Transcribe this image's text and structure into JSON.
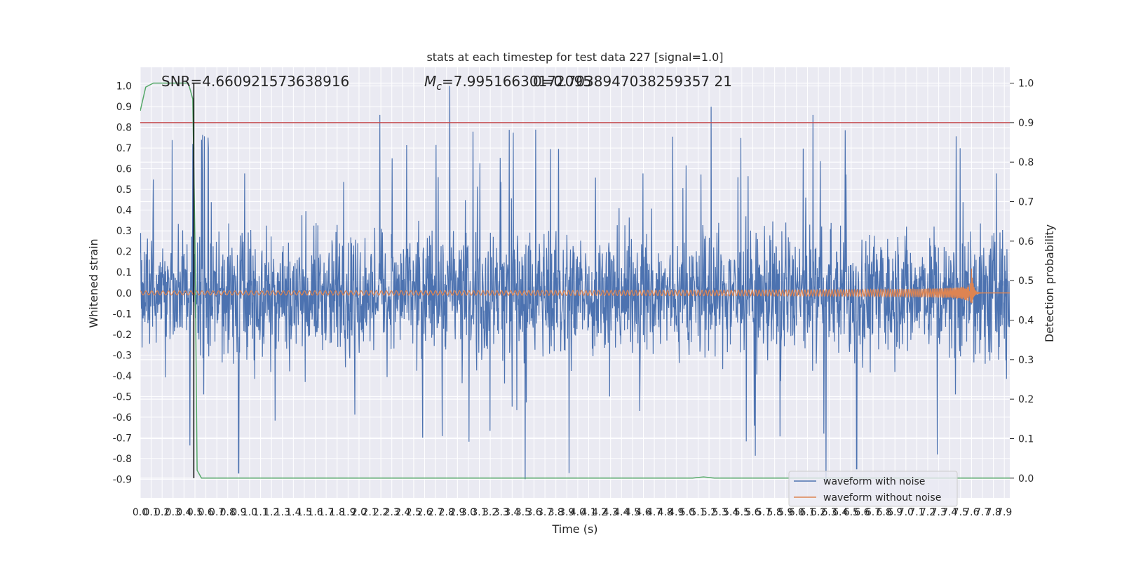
{
  "chart_data": {
    "type": "line",
    "title": "stats at each timestep for test data 227 [signal=1.0]",
    "xlabel": "Time (s)",
    "ylabel": "Whitened strain",
    "y2label": "Detection probability",
    "xlim": [
      0.0,
      7.95
    ],
    "ylim": [
      -0.99,
      1.09
    ],
    "y2lim": [
      -0.05,
      1.04
    ],
    "x_ticks": [
      "0.0",
      "0.1",
      "0.2",
      "0.3",
      "0.4",
      "0.5",
      "0.6",
      "0.7",
      "0.8",
      "0.9",
      "1.0",
      "1.1",
      "1.2",
      "1.3",
      "1.4",
      "1.5",
      "1.6",
      "1.7",
      "1.8",
      "1.9",
      "2.0",
      "2.1",
      "2.2",
      "2.3",
      "2.4",
      "2.5",
      "2.6",
      "2.7",
      "2.8",
      "2.9",
      "3.0",
      "3.1",
      "3.2",
      "3.3",
      "3.4",
      "3.5",
      "3.6",
      "3.7",
      "3.8",
      "3.9",
      "4.0",
      "4.1",
      "4.2",
      "4.3",
      "4.4",
      "4.5",
      "4.6",
      "4.7",
      "4.8",
      "4.9",
      "5.0",
      "5.1",
      "5.2",
      "5.3",
      "5.4",
      "5.5",
      "5.6",
      "5.7",
      "5.8",
      "5.9",
      "6.0",
      "6.1",
      "6.2",
      "6.3",
      "6.4",
      "6.5",
      "6.6",
      "6.7",
      "6.8",
      "6.9",
      "7.0",
      "7.1",
      "7.2",
      "7.3",
      "7.4",
      "7.5",
      "7.6",
      "7.7",
      "7.8",
      "7.9"
    ],
    "y_ticks": [
      "-0.9",
      "-0.8",
      "-0.7",
      "-0.6",
      "-0.5",
      "-0.4",
      "-0.3",
      "-0.2",
      "-0.1",
      "0.0",
      "0.1",
      "0.2",
      "0.3",
      "0.4",
      "0.5",
      "0.6",
      "0.7",
      "0.8",
      "0.9",
      "1.0"
    ],
    "y2_ticks": [
      "0.0",
      "0.1",
      "0.2",
      "0.3",
      "0.4",
      "0.5",
      "0.6",
      "0.7",
      "0.8",
      "0.9",
      "1.0"
    ],
    "annotations": {
      "snr": "SNR=4.660921573638916",
      "mc_prefix": "M",
      "mc_sub": "c",
      "mc_value": "=7.99516630172095",
      "overlap": "0=0.7038947038259357 21"
    },
    "marker_line_x": 0.49,
    "threshold_y2": 0.9,
    "series": [
      {
        "name": "waveform with noise",
        "color": "#4c72b0",
        "style": "noise",
        "amplitude_typical": 0.45,
        "peaks": [
          {
            "x": 2.19,
            "y": 0.86
          },
          {
            "x": 2.83,
            "y": 1.0
          },
          {
            "x": 5.22,
            "y": 0.9
          },
          {
            "x": 6.15,
            "y": 0.86
          },
          {
            "x": 0.62,
            "y": 0.75
          },
          {
            "x": 0.48,
            "y": 0.72
          },
          {
            "x": 3.52,
            "y": -0.9
          },
          {
            "x": 3.92,
            "y": -0.87
          },
          {
            "x": 6.27,
            "y": -0.91
          },
          {
            "x": 6.55,
            "y": -0.85
          },
          {
            "x": 0.9,
            "y": -0.87
          }
        ]
      },
      {
        "name": "waveform without noise",
        "color": "#dd8452",
        "style": "chirp",
        "start_amplitude": 0.01,
        "peak_amplitude": 0.12,
        "merger_x": 7.6,
        "end_x": 7.95
      },
      {
        "name": "",
        "color": "#55a868",
        "axis": "y2",
        "style": "probability",
        "points": [
          [
            0.0,
            0.93
          ],
          [
            0.05,
            0.99
          ],
          [
            0.12,
            1.0
          ],
          [
            0.44,
            1.0
          ],
          [
            0.48,
            0.96
          ],
          [
            0.5,
            0.6
          ],
          [
            0.52,
            0.02
          ],
          [
            0.56,
            0.0
          ],
          [
            5.05,
            0.0
          ],
          [
            5.15,
            0.003
          ],
          [
            5.25,
            0.0
          ],
          [
            7.95,
            0.0
          ]
        ]
      },
      {
        "name": "",
        "color": "#c44e52",
        "axis": "y2",
        "style": "hline",
        "y": 0.9
      }
    ],
    "legend": {
      "placement": "bottom-right",
      "entries": [
        {
          "label": "waveform with noise",
          "color": "#4c72b0"
        },
        {
          "label": "waveform without noise",
          "color": "#dd8452"
        }
      ]
    },
    "grid": true
  }
}
